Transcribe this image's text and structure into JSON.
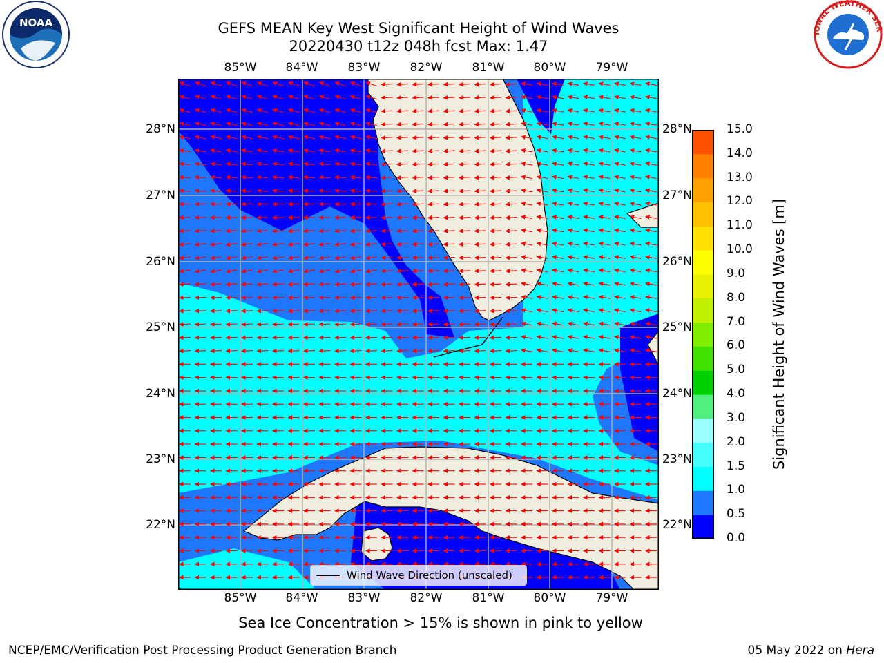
{
  "title_line1": "GEFS MEAN Key West Significant Height of Wind Waves",
  "title_line2": "20220430 t12z 048h fcst   Max: 1.47",
  "noaa_logo_text": "NOAA",
  "nws_logo_text": "NATIONAL WEATHER SERVICE",
  "map": {
    "lon_labels": [
      "85°W",
      "84°W",
      "83°W",
      "82°W",
      "81°W",
      "80°W",
      "79°W"
    ],
    "lat_labels": [
      "28°N",
      "27°N",
      "26°N",
      "25°N",
      "24°N",
      "23°N",
      "22°N"
    ],
    "legend": "Wind Wave Direction (unscaled)",
    "colors": {
      "band_0_0_5": "#0000ff",
      "band_0_5_1_0": "#1e78ff",
      "band_1_0_1_5": "#00ffff",
      "land": "#efedde",
      "arrow": "#ff0000",
      "grid": "#b0b0b0"
    }
  },
  "colorbar": {
    "label": "Significant Height of Wind Waves [m]",
    "ticks": [
      "15.0",
      "14.0",
      "13.0",
      "12.0",
      "11.0",
      "10.0",
      "9.0",
      "8.0",
      "7.0",
      "6.0",
      "5.0",
      "4.0",
      "3.0",
      "2.0",
      "1.5",
      "1.0",
      "0.5",
      "0.0"
    ],
    "colors": [
      "#0000ff",
      "#1e78ff",
      "#00ffff",
      "#46ffff",
      "#9affff",
      "#50f080",
      "#00d000",
      "#40e000",
      "#80ee00",
      "#c0f000",
      "#e6f000",
      "#ffff00",
      "#ffe000",
      "#ffc000",
      "#ffa000",
      "#ff8000",
      "#ff5000",
      "#ff2000",
      "#ff0000"
    ]
  },
  "ice_note": "Sea Ice Concentration > 15% is shown in pink to yellow",
  "footer_left": "NCEP/EMC/Verification Post Processing Product Generation Branch",
  "footer_date": "05 May 2022 on",
  "footer_host": "Hera"
}
